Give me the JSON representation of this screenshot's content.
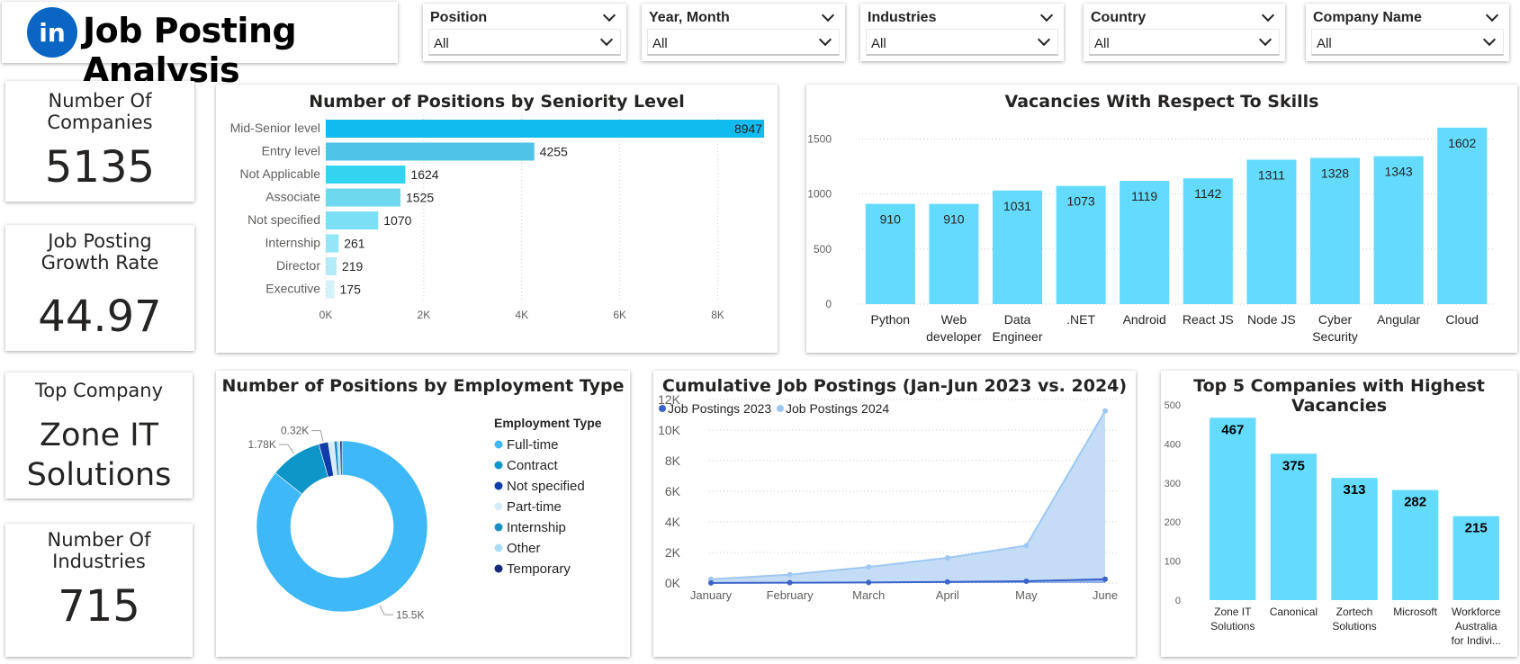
{
  "header": {
    "logo_text": "in",
    "title": "Job Posting Analysis"
  },
  "slicers": [
    {
      "label": "Position",
      "value": "All"
    },
    {
      "label": "Year, Month",
      "value": "All"
    },
    {
      "label": "Industries",
      "value": "All"
    },
    {
      "label": "Country",
      "value": "All"
    },
    {
      "label": "Company Name",
      "value": "All"
    }
  ],
  "kpis": {
    "companies": {
      "title": "Number Of Companies",
      "value": "5135"
    },
    "growth": {
      "title": "Job Posting Growth Rate",
      "value": "44.97"
    },
    "top_company": {
      "title": "Top Company",
      "value": "Zone IT Solutions"
    },
    "industries": {
      "title": "Number Of Industries",
      "value": "715"
    }
  },
  "colors": {
    "accent": "#5fd6f5",
    "linkedin": "#0a66c2"
  },
  "chart_data": [
    {
      "type": "bar",
      "orientation": "horizontal",
      "title": "Number of Positions by Seniority Level",
      "categories": [
        "Mid-Senior level",
        "Entry level",
        "Not Applicable",
        "Associate",
        "Not specified",
        "Internship",
        "Director",
        "Executive"
      ],
      "values": [
        8947,
        4255,
        1624,
        1525,
        1070,
        261,
        219,
        175
      ],
      "value_labels": [
        "8947",
        "4255",
        "1624",
        "1525",
        "1070",
        "261",
        "219",
        "175"
      ],
      "xlim": [
        0,
        9000
      ],
      "xticks": [
        0,
        2000,
        4000,
        6000,
        8000
      ],
      "xtick_labels": [
        "0K",
        "2K",
        "4K",
        "6K",
        "8K"
      ],
      "colors": [
        "#12bbef",
        "#4fc3e8",
        "#33d4f0",
        "#6dd8ee",
        "#7bdff5",
        "#93e6f8",
        "#b3ecf8",
        "#d4f1fa"
      ],
      "grid": true
    },
    {
      "type": "bar",
      "title": "Vacancies With Respect To Skills",
      "categories": [
        [
          "Python"
        ],
        [
          "Web",
          "developer"
        ],
        [
          "Data",
          "Engineer"
        ],
        [
          ".NET"
        ],
        [
          "Android"
        ],
        [
          "React JS"
        ],
        [
          "Node JS"
        ],
        [
          "Cyber",
          "Security"
        ],
        [
          "Angular"
        ],
        [
          "Cloud"
        ]
      ],
      "values": [
        910,
        910,
        1031,
        1073,
        1119,
        1142,
        1311,
        1328,
        1343,
        1602
      ],
      "value_labels": [
        "910",
        "910",
        "1031",
        "1073",
        "1119",
        "1142",
        "1311",
        "1328",
        "1343",
        "1602"
      ],
      "ylim": [
        0,
        1650
      ],
      "yticks": [
        0,
        500,
        1000,
        1500
      ],
      "ytick_labels": [
        "0",
        "500",
        "1000",
        "1500"
      ],
      "color": "#64dbfd",
      "grid": true
    },
    {
      "type": "pie",
      "subtype": "donut",
      "title": "Number of Positions by Employment Type",
      "legend_title": "Employment Type",
      "legend_position": "right",
      "labels": [
        "Full-time",
        "Contract",
        "Not specified",
        "Part-time",
        "Internship",
        "Other",
        "Temporary"
      ],
      "values": [
        15500,
        1780,
        320,
        200,
        110,
        90,
        70
      ],
      "colors": [
        "#3fb8f7",
        "#0f96c9",
        "#0f3ea8",
        "#d6ecfb",
        "#1a8fc4",
        "#a9dcf6",
        "#14297a"
      ],
      "data_labels": [
        {
          "slice": "Full-time",
          "text": "15.5K"
        },
        {
          "slice": "Contract",
          "text": "1.78K"
        },
        {
          "slice": "Not specified",
          "text": "0.32K"
        }
      ]
    },
    {
      "type": "area",
      "title": "Cumulative Job Postings (Jan-Jun 2023 vs. 2024)",
      "categories": [
        "January",
        "February",
        "March",
        "April",
        "May",
        "June"
      ],
      "series": [
        {
          "name": "Job Postings 2023",
          "values": [
            10,
            20,
            40,
            70,
            120,
            250
          ],
          "color": "#3c63c9"
        },
        {
          "name": "Job Postings 2024",
          "values": [
            250,
            550,
            1050,
            1650,
            2450,
            11250
          ],
          "color": "#9ec8f3"
        }
      ],
      "ylim": [
        0,
        12000
      ],
      "yticks": [
        0,
        2000,
        4000,
        6000,
        8000,
        10000,
        12000
      ],
      "ytick_labels": [
        "0K",
        "2K",
        "4K",
        "6K",
        "8K",
        "10K",
        "12K"
      ],
      "legend_position": "top-left",
      "grid": true
    },
    {
      "type": "bar",
      "title": "Top 5 Companies with Highest Vacancies",
      "categories": [
        [
          "Zone IT",
          "Solutions"
        ],
        [
          "Canonical"
        ],
        [
          "Zortech",
          "Solutions"
        ],
        [
          "Microsoft"
        ],
        [
          "Workforce",
          "Australia",
          "for Indivi..."
        ]
      ],
      "values": [
        467,
        375,
        313,
        282,
        215
      ],
      "value_labels": [
        "467",
        "375",
        "313",
        "282",
        "215"
      ],
      "ylim": [
        0,
        500
      ],
      "yticks": [
        0,
        100,
        200,
        300,
        400,
        500
      ],
      "ytick_labels": [
        "0",
        "100",
        "200",
        "300",
        "400",
        "500"
      ],
      "color": "#64dbfd",
      "grid": true
    }
  ]
}
